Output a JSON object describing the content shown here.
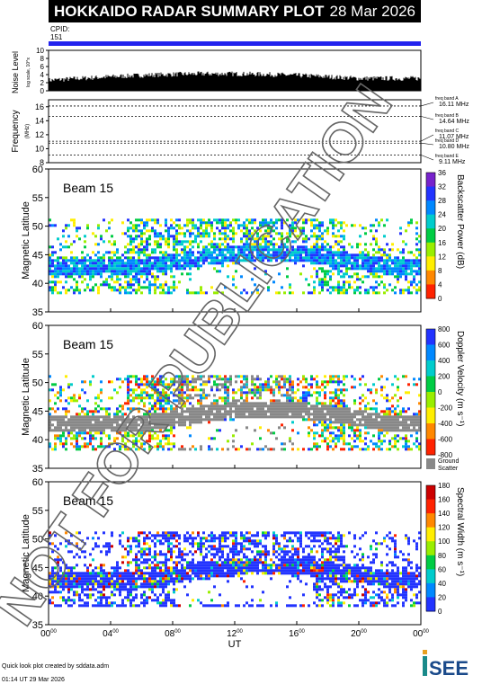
{
  "header": {
    "title": "HOKKAIDO RADAR SUMMARY PLOT",
    "date": "28 Mar 2026",
    "cpid_label": "CPID:",
    "cpid_value": "151"
  },
  "noise_panel": {
    "ylabel": "Noise Level",
    "ylabel_sub": "log scale, 10^x",
    "yticks": [
      "0",
      "2",
      "4",
      "6",
      "8",
      "10"
    ],
    "ylim": [
      0,
      10
    ]
  },
  "frequency_panel": {
    "ylabel": "Frequency",
    "ylabel_unit": "(MHz)",
    "yticks": [
      "8",
      "10",
      "12",
      "14",
      "16"
    ],
    "ylim": [
      8,
      17
    ],
    "bands": [
      {
        "name": "freq band A",
        "value": "16.11 MHz",
        "mhz": 16.11
      },
      {
        "name": "freq band B",
        "value": "14.64 MHz",
        "mhz": 14.64
      },
      {
        "name": "freq band C",
        "value": "11.07 MHz",
        "mhz": 11.07
      },
      {
        "name": "freq band D",
        "value": "10.80 MHz",
        "mhz": 10.8
      },
      {
        "name": "freq band E",
        "value": "9.11 MHz",
        "mhz": 9.11
      }
    ]
  },
  "panels": [
    {
      "beam": "Beam 15",
      "ylabel": "Magnetic Latitude",
      "colorbar_label": "Backscatter Power (dB)",
      "colorbar_ticks": [
        "0",
        "4",
        "8",
        "12",
        "16",
        "20",
        "24",
        "28",
        "32",
        "36"
      ],
      "colors": [
        "#ff2200",
        "#ff8800",
        "#ffee00",
        "#99ee00",
        "#00cc44",
        "#00cccc",
        "#0088ff",
        "#2233ff",
        "#7722cc"
      ]
    },
    {
      "beam": "Beam 15",
      "ylabel": "Magnetic Latitude",
      "colorbar_label": "Doppler Velocity (m s⁻¹)",
      "colorbar_ticks": [
        "-800",
        "-600",
        "-400",
        "-200",
        "0",
        "200",
        "400",
        "600",
        "800"
      ],
      "colors": [
        "#2233ff",
        "#0088ff",
        "#00cccc",
        "#00cc44",
        "#99ee00",
        "#ffee00",
        "#ff8800",
        "#ff2200"
      ],
      "ground_scatter_label": "Ground Scatter",
      "ground_scatter_color": "#888888"
    },
    {
      "beam": "Beam 15",
      "ylabel": "Magnetic Latitude",
      "colorbar_label": "Spectral Width (m s⁻¹)",
      "colorbar_ticks": [
        "0",
        "20",
        "40",
        "60",
        "80",
        "100",
        "120",
        "140",
        "160",
        "180"
      ],
      "colors": [
        "#2233ff",
        "#0088ff",
        "#00cccc",
        "#00cc44",
        "#99ee00",
        "#ffee00",
        "#ff8800",
        "#ff2200",
        "#cc0000"
      ]
    }
  ],
  "x_axis": {
    "label": "UT",
    "ticks": [
      "00",
      "04",
      "08",
      "12",
      "16",
      "20",
      "00"
    ],
    "tick_sup": "00"
  },
  "footer": {
    "credit": "Quick look plot created by sddata.adm",
    "timestamp": "01:14 UT 29 Mar 2026",
    "logo_text": "ISEE"
  },
  "watermark": "NOT FOR PUBLICATION",
  "chart_data": [
    {
      "type": "line",
      "title": "Noise Level",
      "x": [
        "00",
        "04",
        "08",
        "12",
        "16",
        "20",
        "00"
      ],
      "ylim": [
        0,
        10
      ],
      "series": [
        {
          "values": [
            2.0,
            2.5,
            3.5,
            4.0,
            3.8,
            3.5,
            3.2
          ]
        }
      ]
    },
    {
      "type": "line",
      "title": "Frequency",
      "ylim": [
        8,
        17
      ],
      "series": [
        {
          "name": "freq band A",
          "values": [
            16.11
          ]
        },
        {
          "name": "freq band B",
          "values": [
            14.64
          ]
        },
        {
          "name": "freq band C",
          "values": [
            11.07
          ]
        },
        {
          "name": "freq band D",
          "values": [
            10.8
          ]
        },
        {
          "name": "freq band E",
          "values": [
            9.11
          ]
        }
      ]
    },
    {
      "type": "heatmap",
      "title": "Backscatter Power (dB)",
      "ylabel": "Magnetic Latitude",
      "ylim": [
        35,
        60
      ],
      "yticks": [
        35,
        40,
        45,
        50,
        55,
        60
      ],
      "xlim": [
        0,
        24
      ],
      "zlim": [
        0,
        36
      ],
      "echo_lat_range": [
        38.5,
        51.3
      ]
    },
    {
      "type": "heatmap",
      "title": "Doppler Velocity (m s⁻¹)",
      "ylabel": "Magnetic Latitude",
      "ylim": [
        35,
        60
      ],
      "yticks": [
        35,
        40,
        45,
        50,
        55,
        60
      ],
      "xlim": [
        0,
        24
      ],
      "zlim": [
        -800,
        800
      ],
      "echo_lat_range": [
        38.5,
        51.3
      ]
    },
    {
      "type": "heatmap",
      "title": "Spectral Width (m s⁻¹)",
      "ylabel": "Magnetic Latitude",
      "ylim": [
        35,
        60
      ],
      "yticks": [
        35,
        40,
        45,
        50,
        55,
        60
      ],
      "xlim": [
        0,
        24
      ],
      "zlim": [
        0,
        180
      ],
      "echo_lat_range": [
        38.5,
        51.3
      ]
    }
  ]
}
